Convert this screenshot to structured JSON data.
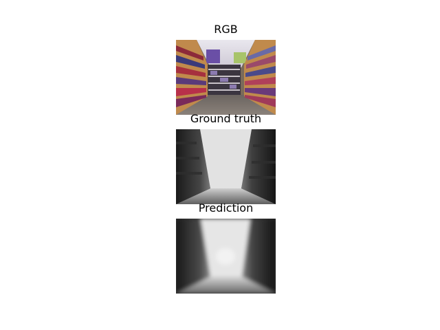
{
  "panels": [
    {
      "title": "RGB",
      "kind": "rgb"
    },
    {
      "title": "Ground truth",
      "kind": "depth"
    },
    {
      "title": "Prediction",
      "kind": "depth-blur"
    }
  ]
}
